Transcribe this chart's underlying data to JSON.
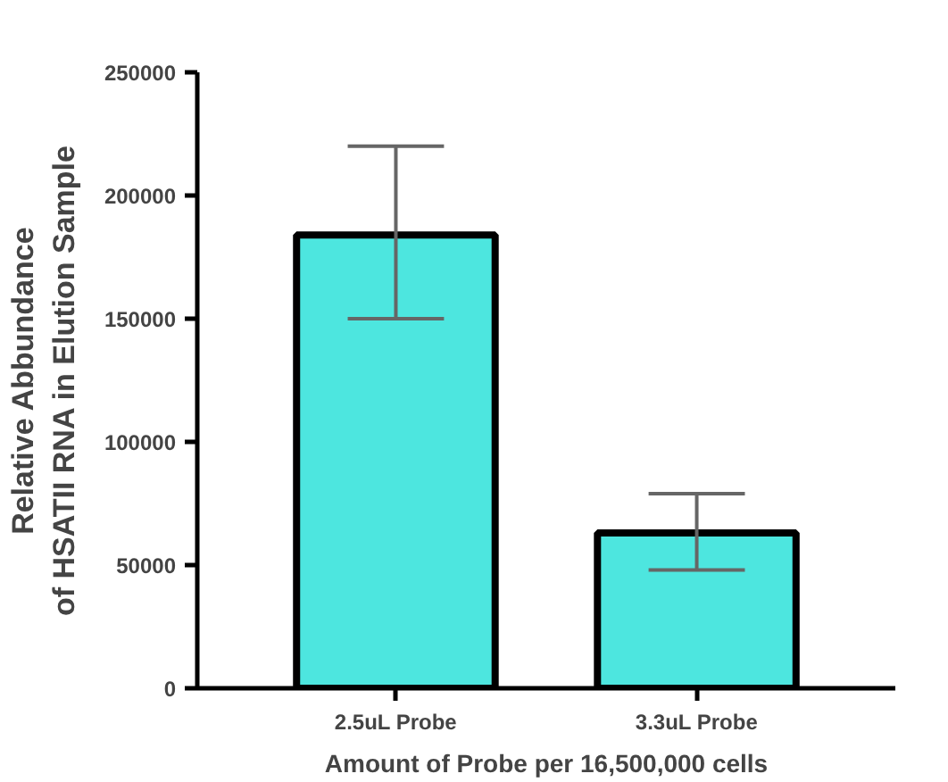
{
  "chart_data": {
    "type": "bar",
    "xlabel": "Amount of Probe per 16,500,000 cells",
    "ylabel": "Relative Abbundance\nof HSATII RNA in Elution Sample",
    "categories": [
      "2.5uL Probe",
      "3.3uL Probe"
    ],
    "values": [
      184000,
      63000
    ],
    "errors": [
      [
        150000,
        220000
      ],
      [
        48000,
        79000
      ]
    ],
    "color": "#4de6df",
    "ylim": [
      0,
      250000
    ],
    "yticks": [
      0,
      50000,
      100000,
      150000,
      200000,
      250000
    ],
    "grid": false
  }
}
